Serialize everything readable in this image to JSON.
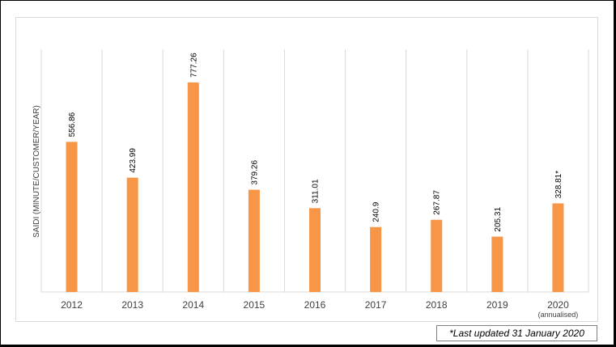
{
  "chart_data": {
    "type": "bar",
    "categories": [
      "2012",
      "2013",
      "2014",
      "2015",
      "2016",
      "2017",
      "2018",
      "2019",
      "2020"
    ],
    "category_sublabels": [
      "",
      "",
      "",
      "",
      "",
      "",
      "",
      "",
      "(annualised)"
    ],
    "values": [
      556.86,
      423.99,
      777.26,
      379.26,
      311.01,
      240.9,
      267.87,
      205.31,
      328.81
    ],
    "data_labels": [
      "556.86",
      "423.99",
      "777.26",
      "379.26",
      "311.01",
      "240.9",
      "267.87",
      "205.31",
      "328.81*"
    ],
    "title": "",
    "xlabel": "",
    "ylabel": "SAIDI (MINUTE/CUSTOMER/YEAR)",
    "ylim": [
      0,
      900
    ],
    "grid": "vertical",
    "bar_color": "#f79646",
    "gridline_color": "#d9d9d9"
  },
  "footnote": "*Last updated 31 January 2020"
}
